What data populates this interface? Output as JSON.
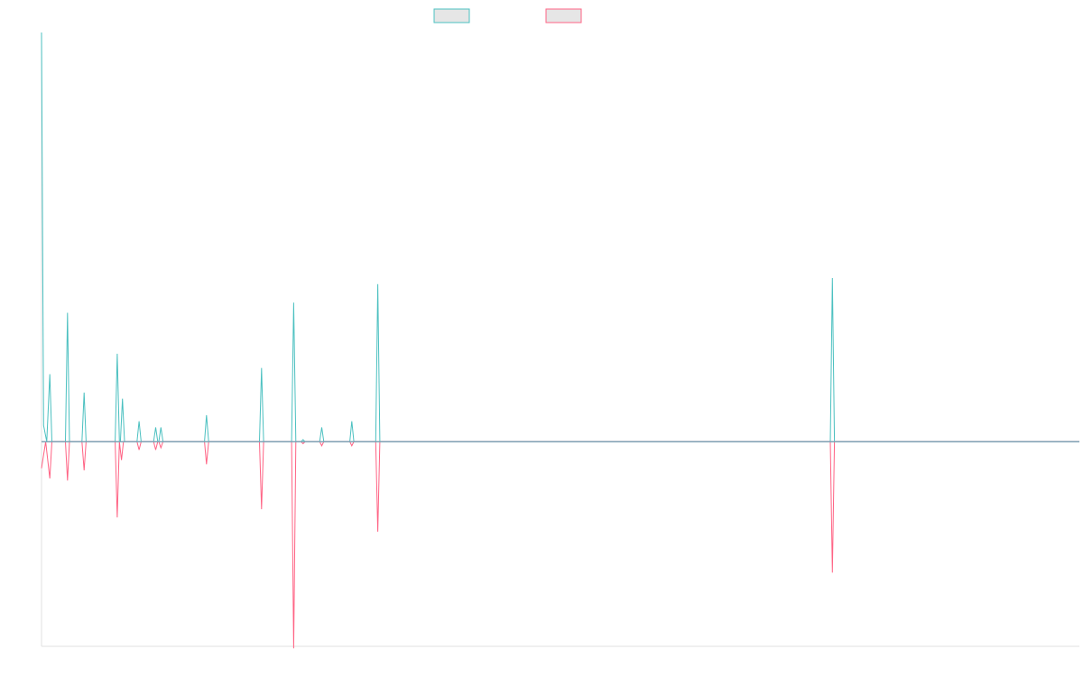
{
  "chart_data": {
    "type": "line",
    "title": "",
    "xlabel": "",
    "ylabel": "",
    "x_range": [
      0,
      1000
    ],
    "ylim": [
      -100,
      200
    ],
    "grid": false,
    "legend_position": "top-center",
    "zero_line": true,
    "series": [
      {
        "color": "#4bc0c0",
        "legend_fill": "#e6e6e6",
        "points": [
          [
            0,
            200
          ],
          [
            2,
            8
          ],
          [
            5,
            0
          ],
          [
            8,
            33
          ],
          [
            10,
            0
          ],
          [
            23,
            0
          ],
          [
            25,
            63
          ],
          [
            27,
            0
          ],
          [
            39,
            0
          ],
          [
            41,
            24
          ],
          [
            43,
            0
          ],
          [
            71,
            0
          ],
          [
            73,
            43
          ],
          [
            75,
            0
          ],
          [
            76,
            0
          ],
          [
            78,
            21
          ],
          [
            80,
            0
          ],
          [
            92,
            0
          ],
          [
            94,
            10
          ],
          [
            96,
            0
          ],
          [
            108,
            0
          ],
          [
            110,
            7
          ],
          [
            112,
            0
          ],
          [
            113,
            0
          ],
          [
            115,
            7
          ],
          [
            117,
            0
          ],
          [
            157,
            0
          ],
          [
            159,
            13
          ],
          [
            161,
            0
          ],
          [
            210,
            0
          ],
          [
            212,
            36
          ],
          [
            214,
            0
          ],
          [
            241,
            0
          ],
          [
            243,
            68
          ],
          [
            245,
            0
          ],
          [
            250,
            0
          ],
          [
            252,
            1
          ],
          [
            254,
            0
          ],
          [
            268,
            0
          ],
          [
            270,
            7
          ],
          [
            272,
            0
          ],
          [
            297,
            0
          ],
          [
            299,
            10
          ],
          [
            301,
            0
          ],
          [
            322,
            0
          ],
          [
            324,
            77
          ],
          [
            326,
            0
          ],
          [
            760,
            0
          ],
          [
            762,
            80
          ],
          [
            764,
            0
          ],
          [
            1000,
            0
          ]
        ]
      },
      {
        "color": "#ff6384",
        "legend_fill": "#e6e6e6",
        "points": [
          [
            0,
            -13
          ],
          [
            4,
            0
          ],
          [
            8,
            -18
          ],
          [
            10,
            0
          ],
          [
            23,
            0
          ],
          [
            25,
            -19
          ],
          [
            27,
            0
          ],
          [
            39,
            0
          ],
          [
            41,
            -14
          ],
          [
            43,
            0
          ],
          [
            71,
            0
          ],
          [
            73,
            -37
          ],
          [
            75,
            0
          ],
          [
            77,
            -9
          ],
          [
            79,
            0
          ],
          [
            92,
            0
          ],
          [
            94,
            -4
          ],
          [
            96,
            0
          ],
          [
            108,
            0
          ],
          [
            110,
            -4
          ],
          [
            112,
            0
          ],
          [
            113,
            0
          ],
          [
            115,
            -3
          ],
          [
            117,
            0
          ],
          [
            157,
            0
          ],
          [
            159,
            -11
          ],
          [
            161,
            0
          ],
          [
            210,
            0
          ],
          [
            212,
            -33
          ],
          [
            214,
            0
          ],
          [
            241,
            0
          ],
          [
            243,
            -101
          ],
          [
            245,
            0
          ],
          [
            250,
            0
          ],
          [
            252,
            -1
          ],
          [
            254,
            0
          ],
          [
            268,
            0
          ],
          [
            270,
            -2
          ],
          [
            272,
            0
          ],
          [
            297,
            0
          ],
          [
            299,
            -2
          ],
          [
            301,
            0
          ],
          [
            322,
            0
          ],
          [
            324,
            -44
          ],
          [
            326,
            0
          ],
          [
            760,
            0
          ],
          [
            762,
            -64
          ],
          [
            764,
            0
          ],
          [
            1000,
            0
          ]
        ]
      }
    ]
  }
}
